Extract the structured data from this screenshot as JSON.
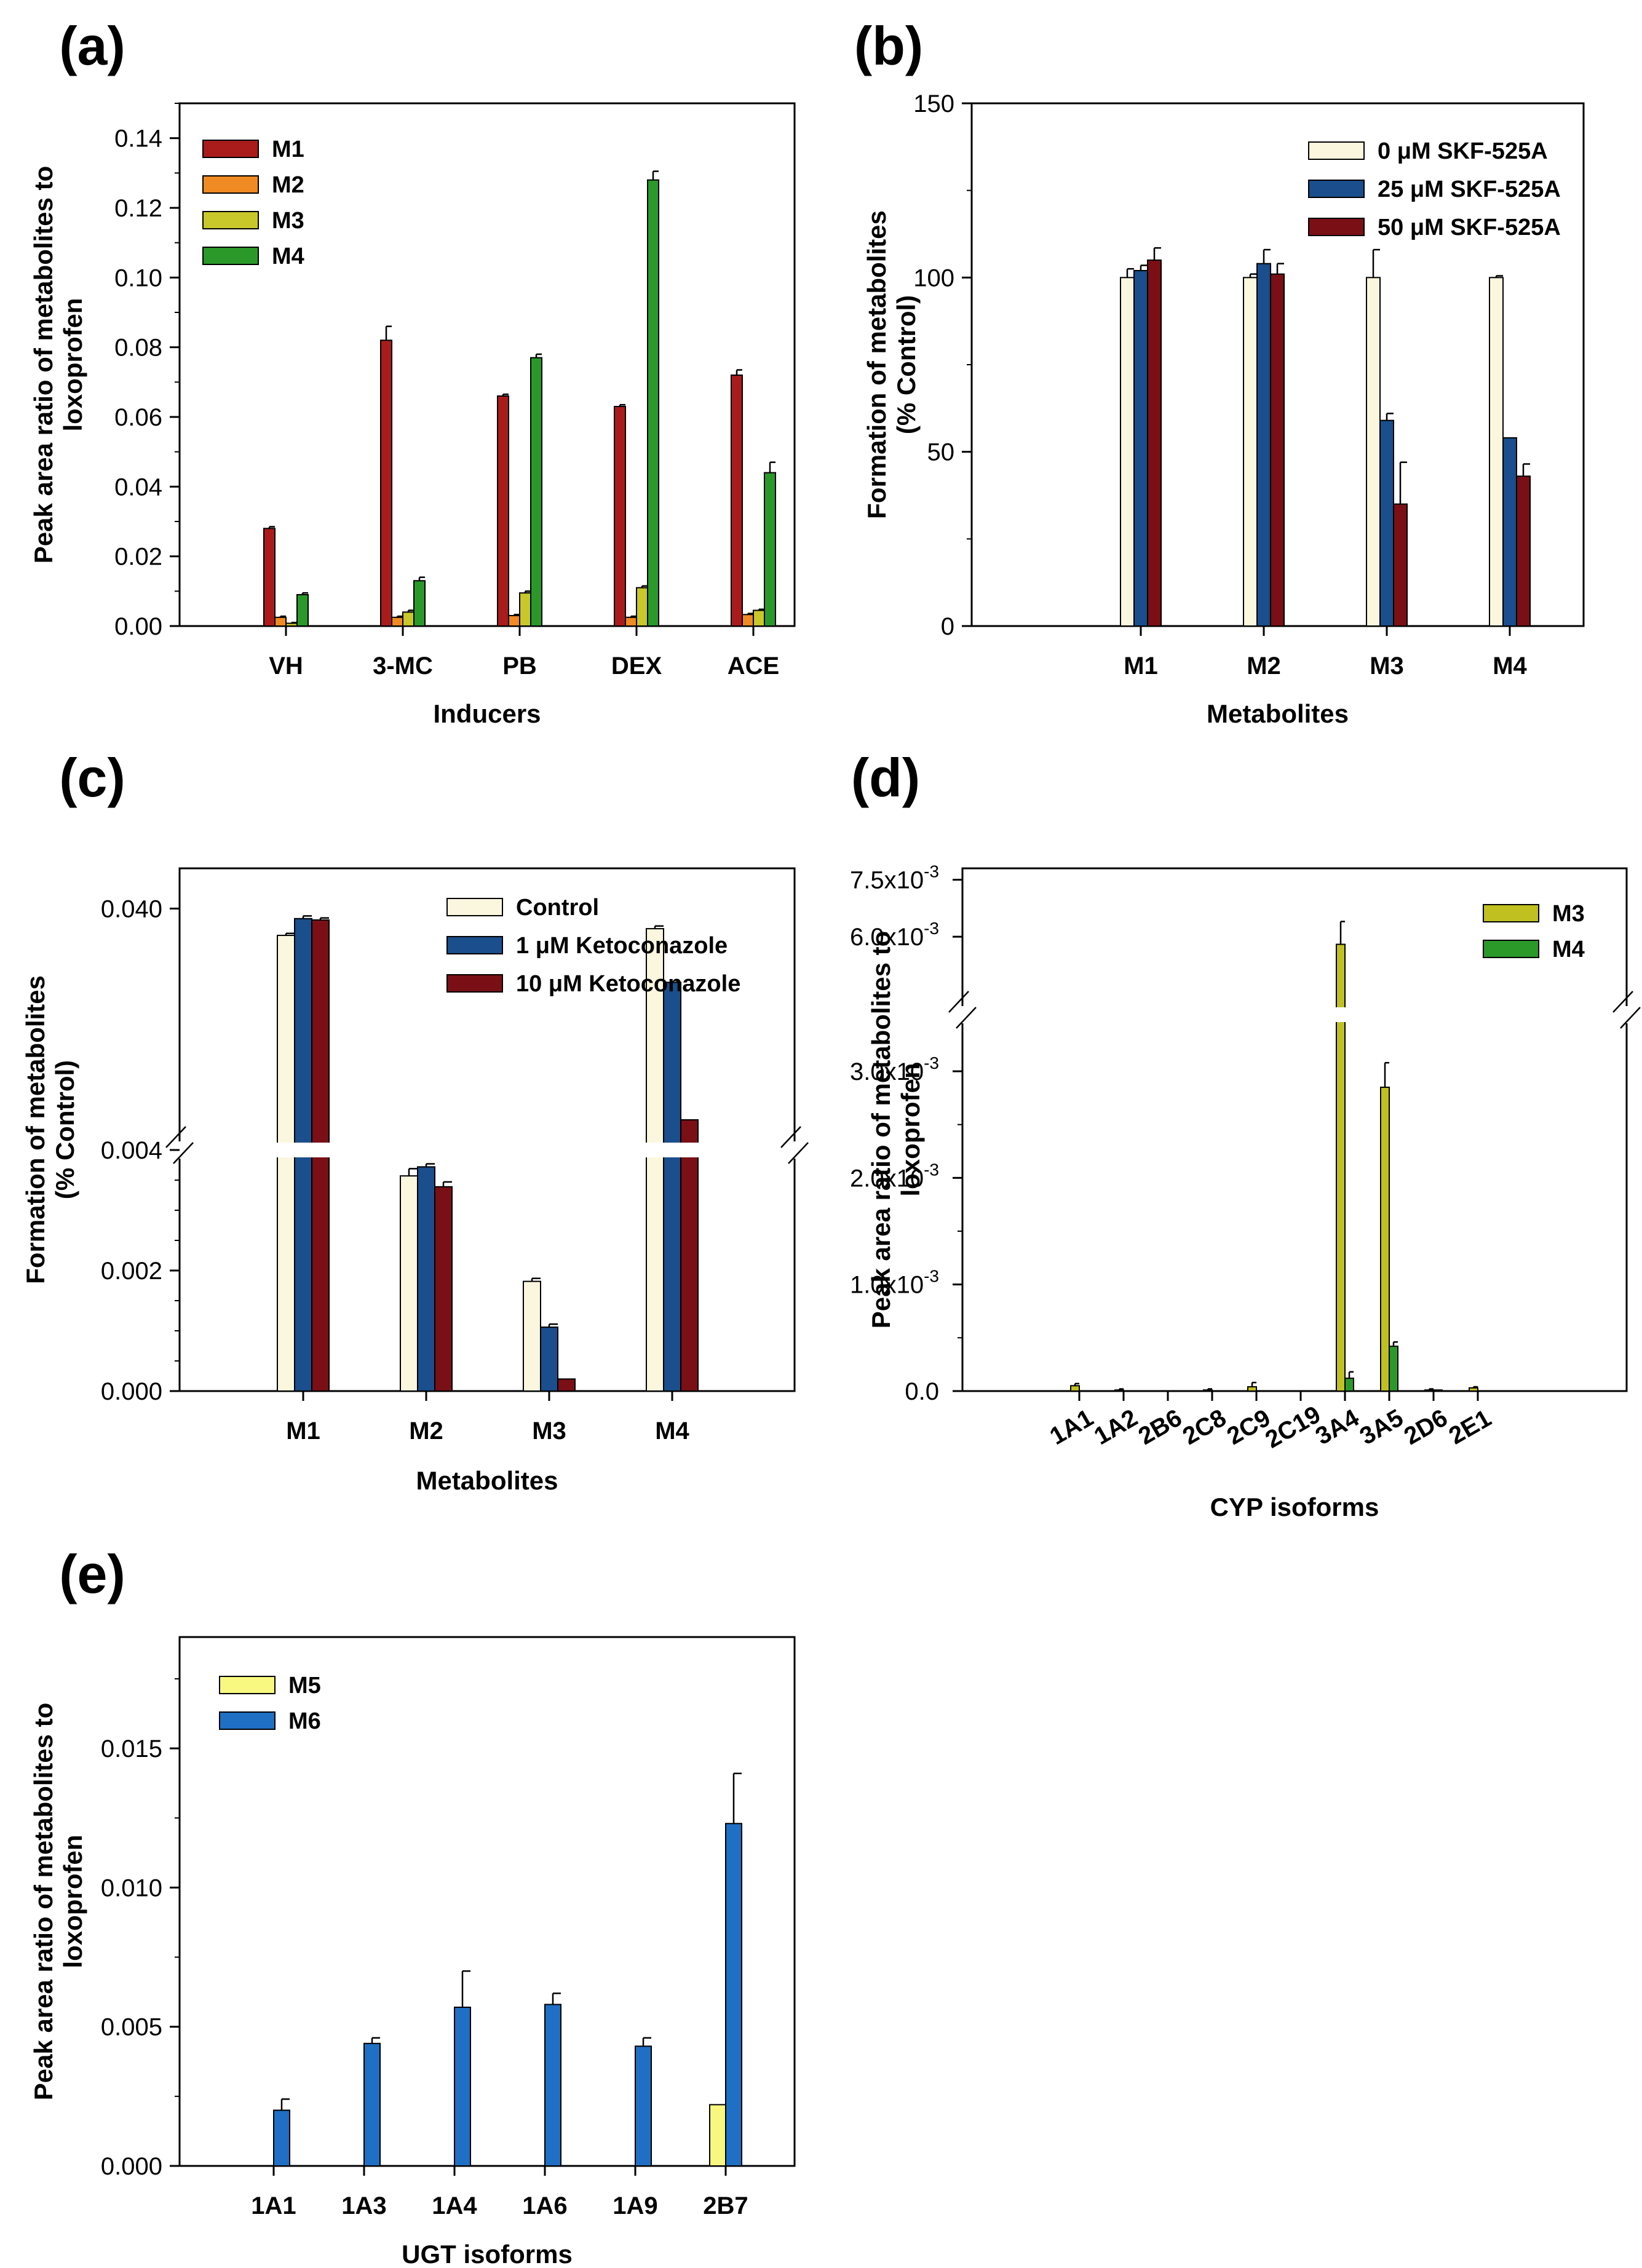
{
  "chart_data": [
    {
      "panel": "(a)",
      "type": "bar",
      "xlabel": "Inducers",
      "ylabel": [
        "Peak area ratio of metabolites to",
        "loxoprofen"
      ],
      "ylim": [
        0,
        0.15
      ],
      "yticks": [
        "0.00",
        "0.02",
        "0.04",
        "0.06",
        "0.08",
        "0.10",
        "0.12",
        "0.14"
      ],
      "legend_position": "top-left",
      "categories": [
        "VH",
        "3-MC",
        "PB",
        "DEX",
        "ACE"
      ],
      "series": [
        {
          "name": "M1",
          "color": "#aa1c1c",
          "values": [
            0.028,
            0.082,
            0.066,
            0.063,
            0.072
          ],
          "errors": [
            0.0005,
            0.004,
            0.0005,
            0.0005,
            0.0015
          ]
        },
        {
          "name": "M2",
          "color": "#f08a22",
          "values": [
            0.0025,
            0.0025,
            0.003,
            0.0025,
            0.0033
          ],
          "errors": [
            0.0003,
            0.0003,
            0.0003,
            0.0003,
            0.0003
          ]
        },
        {
          "name": "M3",
          "color": "#c8c82a",
          "values": [
            0.0008,
            0.004,
            0.0095,
            0.011,
            0.0045
          ],
          "errors": [
            0.0002,
            0.0005,
            0.0005,
            0.0005,
            0.0003
          ]
        },
        {
          "name": "M4",
          "color": "#2a992a",
          "values": [
            0.009,
            0.013,
            0.077,
            0.128,
            0.044
          ],
          "errors": [
            0.0005,
            0.001,
            0.001,
            0.0025,
            0.003
          ]
        }
      ]
    },
    {
      "panel": "(b)",
      "type": "bar",
      "xlabel": "Metabolites",
      "ylabel": [
        "Formation of metabolites",
        "(% Control)"
      ],
      "ylim": [
        0,
        150
      ],
      "yticks": [
        "0",
        "50",
        "100",
        "150"
      ],
      "legend_position": "top-right",
      "categories": [
        "M1",
        "M2",
        "M3",
        "M4"
      ],
      "series": [
        {
          "name": "0 μM SKF-525A",
          "color": "#fbf7de",
          "values": [
            100,
            100,
            100,
            100
          ],
          "errors": [
            2.5,
            1,
            8,
            0.5
          ]
        },
        {
          "name": "25 μM SKF-525A",
          "color": "#1a4e8c",
          "values": [
            102,
            104,
            59,
            54
          ],
          "errors": [
            1.5,
            4,
            2,
            0
          ]
        },
        {
          "name": "50 μM SKF-525A",
          "color": "#7a0f16",
          "values": [
            105,
            101,
            35,
            43
          ],
          "errors": [
            3.5,
            3,
            12,
            3.5
          ]
        }
      ]
    },
    {
      "panel": "(c)",
      "type": "bar",
      "broken_axis": true,
      "xlabel": "Metabolites",
      "ylabel": [
        "Formation of metabolites",
        "(% Control)"
      ],
      "yticks": [
        "0.000",
        "0.002",
        "0.004",
        "0.040"
      ],
      "legend_position": "top-right",
      "categories": [
        "M1",
        "M2",
        "M3",
        "M4"
      ],
      "series": [
        {
          "name": "Control",
          "color": "#fbf7de",
          "values": [
            0.036,
            0.00357,
            0.00182,
            0.037
          ],
          "errors": [
            0.0003,
            0.00012,
            5e-05,
            0.0004
          ]
        },
        {
          "name": "1 μM Ketoconazole",
          "color": "#1a4e8c",
          "values": [
            0.0385,
            0.00372,
            0.00106,
            0.029
          ],
          "errors": [
            0.0004,
            5e-05,
            5e-05,
            0
          ]
        },
        {
          "name": "10 μM Ketoconazole",
          "color": "#7a0f16",
          "values": [
            0.0383,
            0.00339,
            0.0002,
            0.0085
          ],
          "errors": [
            0.0003,
            8e-05,
            0,
            0
          ]
        }
      ]
    },
    {
      "panel": "(d)",
      "type": "bar",
      "broken_axis": true,
      "xlabel": "CYP isoforms",
      "ylabel": [
        "Peak area ratio of metabolites to",
        "loxoprofen"
      ],
      "yticks": [
        {
          "mant": "0.0",
          "exp": ""
        },
        {
          "mant": "1.0x10",
          "exp": "-3"
        },
        {
          "mant": "2.0x10",
          "exp": "-3"
        },
        {
          "mant": "3.0x10",
          "exp": "-3"
        },
        {
          "mant": "6.0x10",
          "exp": "-3"
        },
        {
          "mant": "7.5x10",
          "exp": "-3"
        }
      ],
      "legend_position": "top-right",
      "categories": [
        "1A1",
        "1A2",
        "2B6",
        "2C8",
        "2C9",
        "2C19",
        "3A4",
        "3A5",
        "2D6",
        "2E1"
      ],
      "series": [
        {
          "name": "M3",
          "color": "#c0c020",
          "values": [
            5e-05,
            1e-05,
            0,
            1e-05,
            4e-05,
            0,
            0.0058,
            0.00285,
            1e-05,
            3e-05
          ],
          "errors": [
            2e-05,
            1e-05,
            0,
            1e-05,
            4e-05,
            0,
            0.0006,
            0.00023,
            1e-05,
            1e-05
          ]
        },
        {
          "name": "M4",
          "color": "#2a992a",
          "values": [
            0,
            0,
            0,
            0,
            0,
            0,
            0.00012,
            0.00042,
            1e-05,
            0
          ],
          "errors": [
            0,
            0,
            0,
            0,
            0,
            0,
            6e-05,
            4e-05,
            0,
            0
          ]
        }
      ]
    },
    {
      "panel": "(e)",
      "type": "bar",
      "xlabel": "UGT isoforms",
      "ylabel": [
        "Peak area ratio of metabolites to",
        "loxoprofen"
      ],
      "ylim": [
        0,
        0.019
      ],
      "yticks": [
        "0.000",
        "0.005",
        "0.010",
        "0.015"
      ],
      "legend_position": "top-left",
      "categories": [
        "1A1",
        "1A3",
        "1A4",
        "1A6",
        "1A9",
        "2B7"
      ],
      "series": [
        {
          "name": "M5",
          "color": "#f8f880",
          "values": [
            0,
            0,
            0,
            0,
            0,
            0.0022
          ],
          "errors": [
            0,
            0,
            0,
            0,
            0,
            0
          ]
        },
        {
          "name": "M6",
          "color": "#1f6fc4",
          "values": [
            0.002,
            0.0044,
            0.0057,
            0.0058,
            0.0043,
            0.0123
          ],
          "errors": [
            0.0004,
            0.0002,
            0.0013,
            0.0004,
            0.0003,
            0.0018
          ]
        }
      ]
    }
  ]
}
